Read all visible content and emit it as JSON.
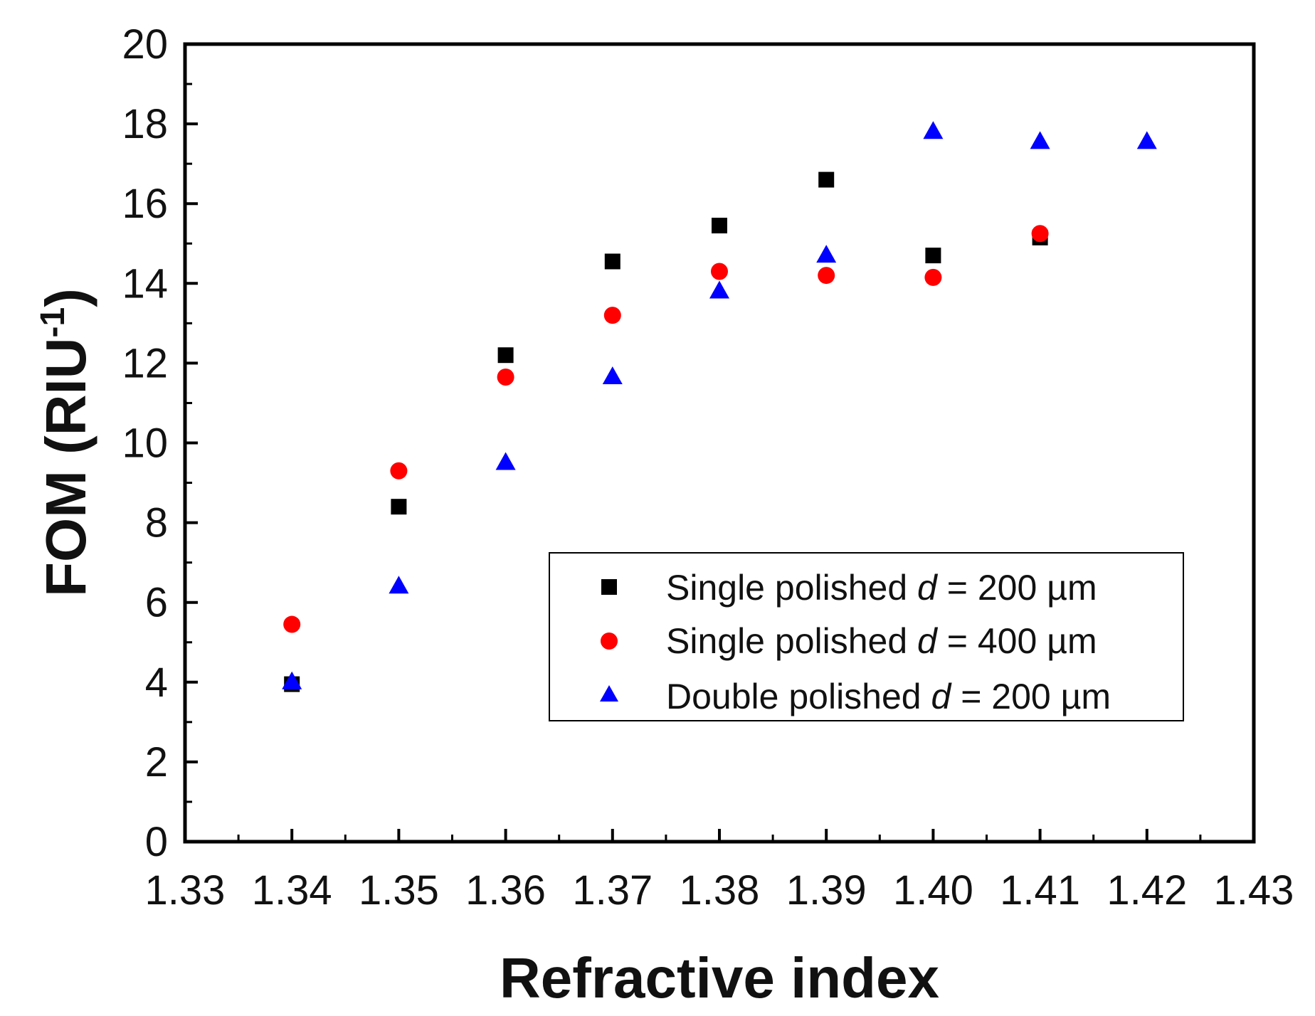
{
  "chart_data": {
    "type": "scatter",
    "title": "",
    "xlabel": "Refractive index",
    "ylabel": "FOM (RIU",
    "ylabel_superscript": "-1",
    "ylabel_close": ")",
    "xlim": [
      1.33,
      1.43
    ],
    "ylim": [
      0,
      20
    ],
    "xticks": [
      "1.33",
      "1.34",
      "1.35",
      "1.36",
      "1.37",
      "1.38",
      "1.39",
      "1.40",
      "1.41",
      "1.42",
      "1.43"
    ],
    "yticks": [
      "0",
      "2",
      "4",
      "6",
      "8",
      "10",
      "12",
      "14",
      "16",
      "18",
      "20"
    ],
    "grid": false,
    "legend_position": "lower-right",
    "series": [
      {
        "name": "Single polished d = 200 µm",
        "label_prefix": "Single polished ",
        "label_var": "d",
        "label_suffix": " = 200 µm",
        "marker": "square",
        "color": "#000000",
        "x": [
          1.34,
          1.35,
          1.36,
          1.37,
          1.38,
          1.39,
          1.4,
          1.41
        ],
        "y": [
          3.95,
          8.4,
          12.2,
          14.55,
          15.45,
          16.6,
          14.7,
          15.15
        ]
      },
      {
        "name": "Single polished d = 400 µm",
        "label_prefix": "Single polished ",
        "label_var": "d",
        "label_suffix": " = 400 µm",
        "marker": "circle",
        "color": "#ff0000",
        "x": [
          1.34,
          1.35,
          1.36,
          1.37,
          1.38,
          1.39,
          1.4,
          1.41
        ],
        "y": [
          5.45,
          9.3,
          11.65,
          13.2,
          14.3,
          14.2,
          14.15,
          15.25
        ]
      },
      {
        "name": "Double polished d = 200 µm",
        "label_prefix": "Double polished ",
        "label_var": "d",
        "label_suffix": " = 200 µm",
        "marker": "triangle",
        "color": "#0000ff",
        "x": [
          1.34,
          1.35,
          1.36,
          1.37,
          1.38,
          1.39,
          1.4,
          1.41,
          1.42
        ],
        "y": [
          4.0,
          6.4,
          9.5,
          11.65,
          13.8,
          14.7,
          17.8,
          17.55,
          17.55
        ]
      }
    ]
  }
}
